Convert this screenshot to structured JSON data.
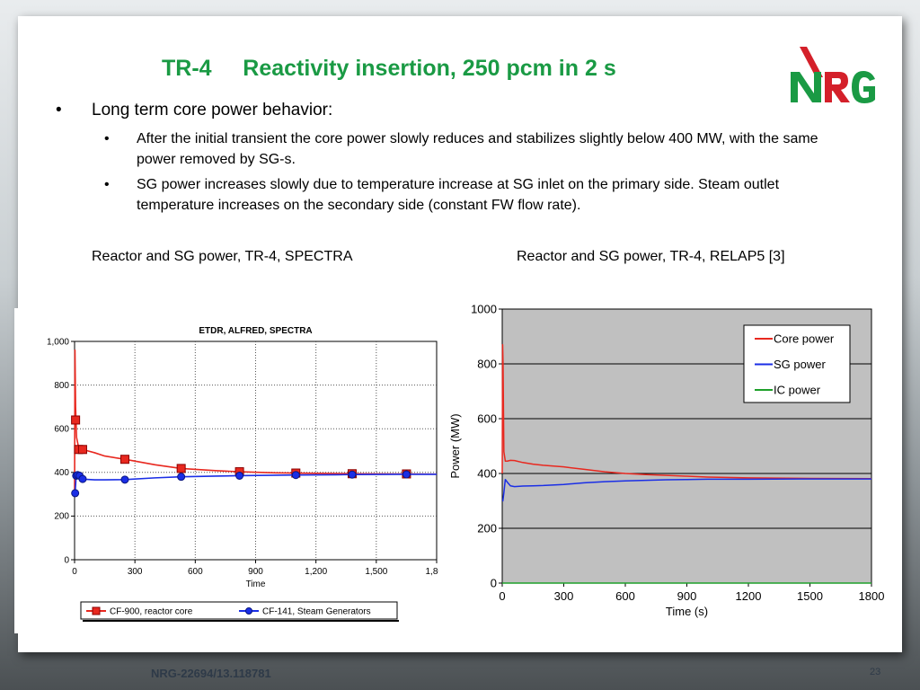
{
  "slide": {
    "title": "TR-4     Reactivity insertion, 250 pcm in 2 s",
    "bullet_1": "Long term core power behavior:",
    "sub_bullets": [
      "After the initial transient the core power slowly reduces and stabilizes slightly below 400 MW, with the same power removed by SG-s.",
      "SG power increases slowly due to temperature increase at SG inlet on the primary side. Steam outlet temperature increases on the secondary side (constant FW flow rate)."
    ],
    "caption_left": "Reactor and SG power, TR-4, SPECTRA",
    "caption_right": "Reactor and SG power, TR-4, RELAP5 [3]",
    "footer_id": "NRG-22694/13.118781",
    "page_number": "23",
    "logo_text": "NRG",
    "bullet_glyph": "•"
  },
  "colors": {
    "title": "#1a9a44",
    "logo_green": "#1a9a44",
    "logo_red": "#d4202a",
    "red_series": "#e8281f",
    "blue_series": "#1a2ee6",
    "green_series": "#1ea02a",
    "plot_bg_right": "#c0c0c0"
  },
  "chart_data": [
    {
      "type": "line",
      "title": "ETDR, ALFRED, SPECTRA",
      "xlabel": "Time",
      "ylabel": "",
      "xlim": [
        0,
        1800
      ],
      "ylim": [
        0,
        1000
      ],
      "x_ticks": [
        "0",
        "300",
        "600",
        "900",
        "1,200",
        "1,500",
        "1,800"
      ],
      "y_ticks": [
        "0",
        "200",
        "400",
        "600",
        "800",
        "1,000"
      ],
      "grid": true,
      "legend_position": "bottom",
      "series": [
        {
          "name": "CF-900, reactor core",
          "color": "#e8281f",
          "marker": "square",
          "x": [
            0,
            2,
            5,
            10,
            20,
            40,
            60,
            100,
            150,
            250,
            400,
            530,
            700,
            820,
            1000,
            1100,
            1300,
            1380,
            1600,
            1650,
            1800
          ],
          "y": [
            300,
            960,
            700,
            560,
            515,
            505,
            500,
            490,
            475,
            460,
            435,
            418,
            408,
            403,
            398,
            397,
            395,
            394,
            393,
            393,
            392
          ],
          "markers_x": [
            5,
            20,
            40,
            250,
            530,
            820,
            1100,
            1380,
            1650
          ],
          "markers_y": [
            640,
            505,
            505,
            460,
            418,
            403,
            397,
            394,
            393
          ]
        },
        {
          "name": "CF-141, Steam Generators",
          "color": "#1a2ee6",
          "marker": "circle",
          "x": [
            0,
            3,
            8,
            15,
            25,
            40,
            60,
            100,
            150,
            250,
            400,
            530,
            700,
            820,
            1000,
            1100,
            1300,
            1380,
            1600,
            1650,
            1800
          ],
          "y": [
            290,
            310,
            385,
            388,
            385,
            375,
            368,
            366,
            366,
            367,
            375,
            380,
            383,
            385,
            387,
            388,
            389,
            390,
            391,
            391,
            391
          ],
          "markers_x": [
            3,
            8,
            15,
            25,
            40,
            250,
            530,
            820,
            1100,
            1380,
            1650
          ],
          "markers_y": [
            305,
            385,
            388,
            385,
            370,
            367,
            380,
            385,
            388,
            390,
            391
          ]
        }
      ]
    },
    {
      "type": "line",
      "title": "",
      "xlabel": "Time (s)",
      "ylabel": "Power (MW)",
      "xlim": [
        0,
        1800
      ],
      "ylim": [
        0,
        1000
      ],
      "x_ticks": [
        "0",
        "300",
        "600",
        "900",
        "1200",
        "1500",
        "1800"
      ],
      "y_ticks": [
        "0",
        "200",
        "400",
        "600",
        "800",
        "1000"
      ],
      "grid": true,
      "legend_position": "top-right",
      "series": [
        {
          "name": "Core power",
          "color": "#e8281f",
          "x": [
            0,
            2,
            4,
            8,
            15,
            25,
            40,
            60,
            100,
            150,
            200,
            300,
            400,
            500,
            600,
            700,
            800,
            900,
            1000,
            1200,
            1500,
            1800
          ],
          "y": [
            400,
            870,
            800,
            480,
            445,
            445,
            448,
            447,
            440,
            434,
            430,
            424,
            415,
            406,
            400,
            396,
            393,
            390,
            387,
            384,
            382,
            381
          ]
        },
        {
          "name": "SG power",
          "color": "#1a2ee6",
          "x": [
            0,
            3,
            8,
            15,
            25,
            40,
            60,
            100,
            150,
            200,
            300,
            400,
            500,
            600,
            700,
            800,
            900,
            1000,
            1200,
            1500,
            1800
          ],
          "y": [
            300,
            300,
            330,
            378,
            368,
            355,
            352,
            354,
            355,
            356,
            360,
            366,
            370,
            373,
            375,
            377,
            378,
            379,
            379,
            380,
            380
          ]
        },
        {
          "name": "IC power",
          "color": "#1ea02a",
          "x": [
            0,
            1800
          ],
          "y": [
            0,
            0
          ]
        }
      ]
    }
  ]
}
